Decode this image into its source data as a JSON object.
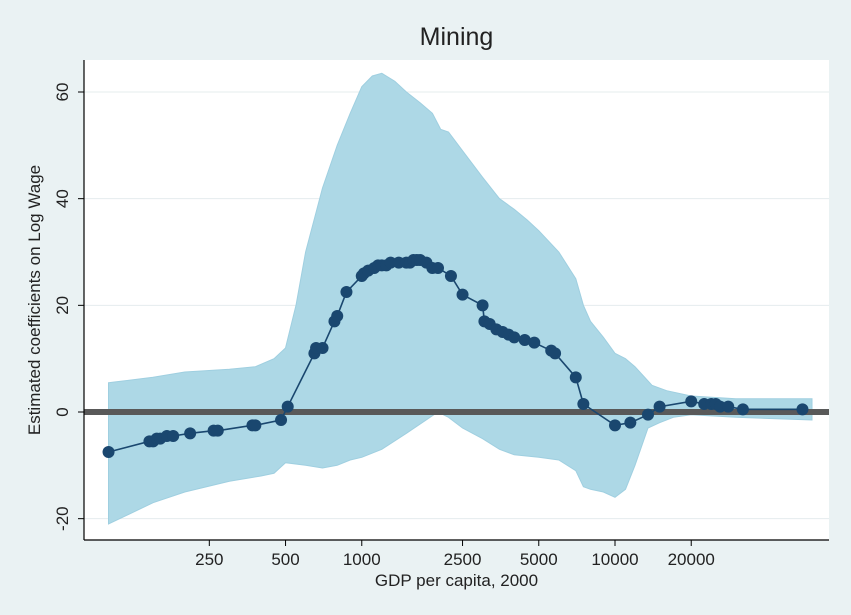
{
  "chart_data": {
    "type": "line",
    "title": "Mining",
    "xlabel": "GDP per capita, 2000",
    "ylabel": "Estimated coefficients on Log Wage",
    "x_scale": "log",
    "xlim": [
      80,
      70000
    ],
    "ylim": [
      -24,
      66
    ],
    "x_ticks": [
      250,
      500,
      1000,
      2500,
      5000,
      10000,
      20000
    ],
    "x_tick_labels": [
      "250",
      "500",
      "1000",
      "2500",
      "5000",
      "10000",
      "20000"
    ],
    "y_ticks": [
      -20,
      0,
      20,
      40,
      60
    ],
    "y_tick_labels": [
      "-20",
      "0",
      "20",
      "40",
      "60"
    ],
    "grid": true,
    "zero_line": true,
    "colors": {
      "background": "#eaf2f3",
      "plot_background": "#ffffff",
      "band": "#add8e6",
      "band_edge": "#9fcfe0",
      "line": "#1a476f",
      "zero_line": "#595959"
    },
    "confidence_band": {
      "upper": [
        [
          100,
          5.5
        ],
        [
          150,
          6.5
        ],
        [
          200,
          7.5
        ],
        [
          300,
          8
        ],
        [
          380,
          8.5
        ],
        [
          450,
          10
        ],
        [
          500,
          12
        ],
        [
          550,
          20
        ],
        [
          600,
          30
        ],
        [
          700,
          42
        ],
        [
          800,
          50
        ],
        [
          900,
          56
        ],
        [
          1000,
          61
        ],
        [
          1100,
          63
        ],
        [
          1200,
          63.5
        ],
        [
          1350,
          62
        ],
        [
          1500,
          60
        ],
        [
          1700,
          58
        ],
        [
          1900,
          56
        ],
        [
          2050,
          53
        ],
        [
          2200,
          52.5
        ],
        [
          2500,
          49
        ],
        [
          3000,
          44
        ],
        [
          3500,
          40
        ],
        [
          4000,
          38
        ],
        [
          4500,
          36
        ],
        [
          5000,
          34
        ],
        [
          6000,
          30
        ],
        [
          7000,
          25
        ],
        [
          7500,
          20
        ],
        [
          8000,
          17
        ],
        [
          9000,
          14
        ],
        [
          10000,
          11
        ],
        [
          11000,
          10
        ],
        [
          12000,
          8.5
        ],
        [
          14000,
          5
        ],
        [
          16000,
          4
        ],
        [
          20000,
          3
        ],
        [
          30000,
          2.5
        ],
        [
          60000,
          2.5
        ]
      ],
      "lower": [
        [
          100,
          -21
        ],
        [
          150,
          -17
        ],
        [
          200,
          -15
        ],
        [
          300,
          -13
        ],
        [
          400,
          -12
        ],
        [
          450,
          -11.5
        ],
        [
          500,
          -9.5
        ],
        [
          600,
          -10
        ],
        [
          700,
          -10.5
        ],
        [
          800,
          -10
        ],
        [
          900,
          -9
        ],
        [
          1000,
          -8.5
        ],
        [
          1200,
          -7
        ],
        [
          1500,
          -4
        ],
        [
          2000,
          0
        ],
        [
          2200,
          -1
        ],
        [
          2500,
          -3
        ],
        [
          3000,
          -5
        ],
        [
          3500,
          -7
        ],
        [
          4000,
          -8
        ],
        [
          5000,
          -8.5
        ],
        [
          6000,
          -9
        ],
        [
          7000,
          -11
        ],
        [
          7500,
          -14
        ],
        [
          8000,
          -14.5
        ],
        [
          9000,
          -15
        ],
        [
          10000,
          -16
        ],
        [
          11000,
          -14.5
        ],
        [
          12000,
          -10
        ],
        [
          13500,
          -3
        ],
        [
          15000,
          -2
        ],
        [
          17000,
          -1
        ],
        [
          20000,
          -0.5
        ],
        [
          30000,
          -1
        ],
        [
          60000,
          -1.5
        ]
      ]
    },
    "series": [
      {
        "x": [
          100,
          145,
          150,
          155,
          160,
          170,
          180,
          210,
          260,
          270,
          370,
          380,
          480,
          510,
          650,
          660,
          700,
          780,
          800,
          870,
          1000,
          1020,
          1060,
          1120,
          1160,
          1200,
          1250,
          1300,
          1400,
          1500,
          1550,
          1600,
          1650,
          1700,
          1800,
          1900,
          2000,
          2250,
          2500,
          3000,
          3050,
          3200,
          3400,
          3600,
          3800,
          4000,
          4400,
          4800,
          5600,
          5800,
          7000,
          7500,
          10000,
          11500,
          13500,
          15000,
          20000,
          22500,
          24000,
          25000,
          26000,
          28000,
          32000,
          55000
        ],
        "y": [
          -7.5,
          -5.5,
          -5.5,
          -5,
          -5,
          -4.5,
          -4.5,
          -4,
          -3.5,
          -3.5,
          -2.5,
          -2.5,
          -1.5,
          1,
          11,
          12,
          12,
          17,
          18,
          22.5,
          25.5,
          26,
          26.5,
          27,
          27.5,
          27.5,
          27.5,
          28,
          28,
          28,
          28,
          28.5,
          28.5,
          28.5,
          28,
          27,
          27,
          25.5,
          22,
          20,
          17,
          16.5,
          15.5,
          15,
          14.5,
          14,
          13.5,
          13,
          11.5,
          11,
          6.5,
          1.5,
          -2.5,
          -2,
          -0.5,
          1,
          2,
          1.5,
          1.5,
          1.5,
          1,
          1,
          0.5,
          0.5
        ]
      }
    ]
  }
}
